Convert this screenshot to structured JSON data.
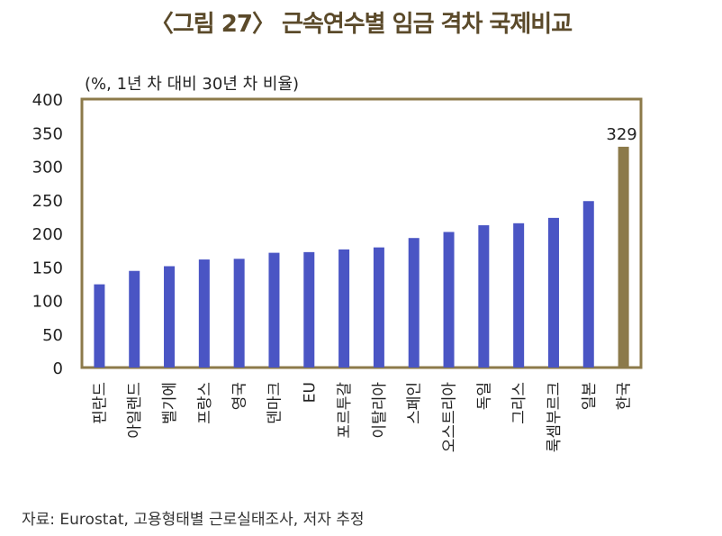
{
  "title": "〈그림 27〉 근속연수별 임금 격차 국제비교",
  "unit_label": "(%, 1년 차 대비 30년 차 비율)",
  "source": "자료: Eurostat, 고용형태별 근로실태조사, 저자 추정",
  "colors": {
    "default_bar": "#4a55c4",
    "highlight_bar": "#8c7a4a",
    "frame": "#8c7a4a"
  },
  "chart_data": {
    "type": "bar",
    "title": "〈그림 27〉 근속연수별 임금 격차 국제비교",
    "ylabel": "(%, 1년 차 대비 30년 차 비율)",
    "xlabel": "",
    "ylim": [
      0,
      400
    ],
    "yticks": [
      0,
      50,
      100,
      150,
      200,
      250,
      300,
      350,
      400
    ],
    "grid": false,
    "categories": [
      "핀란드",
      "아일랜드",
      "벨기에",
      "프랑스",
      "영국",
      "덴마크",
      "EU",
      "포르투갈",
      "이탈리아",
      "스페인",
      "오스트리아",
      "독일",
      "그리스",
      "룩셈부르크",
      "일본",
      "한국"
    ],
    "values": [
      124,
      144,
      151,
      161,
      162,
      171,
      172,
      176,
      179,
      193,
      202,
      212,
      215,
      223,
      248,
      329
    ],
    "highlight": "한국",
    "data_labels": [
      {
        "category": "한국",
        "text": "329"
      }
    ]
  }
}
